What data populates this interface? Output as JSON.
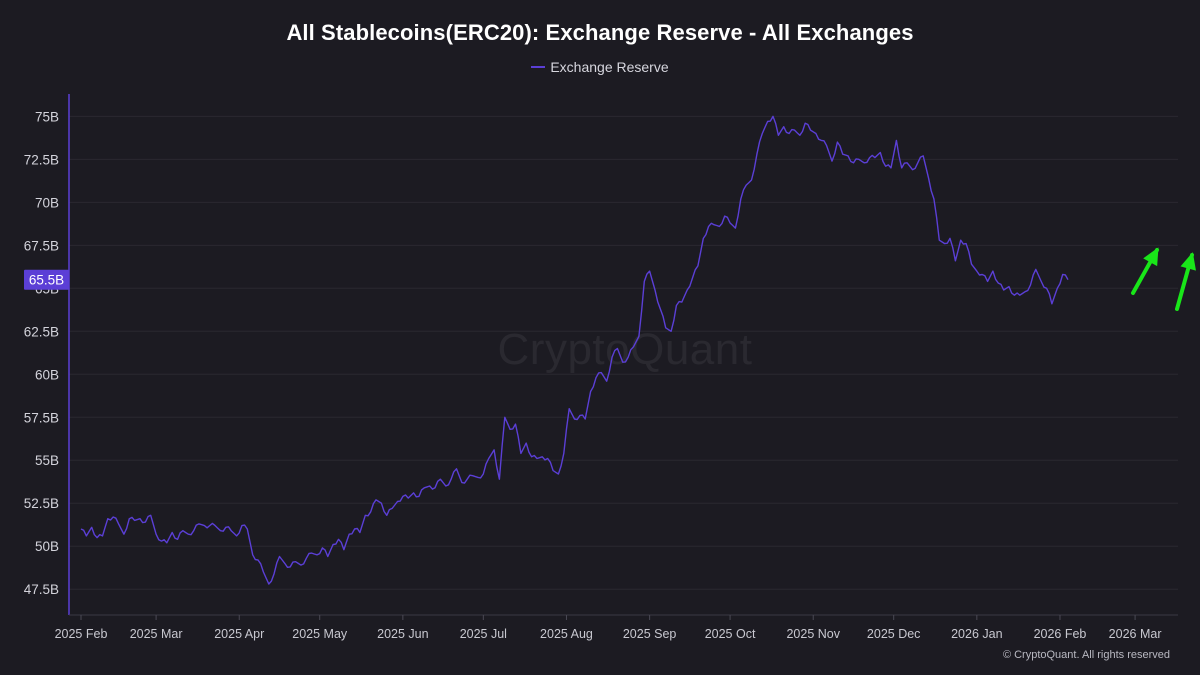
{
  "chart_data": {
    "type": "line",
    "title": "All Stablecoins(ERC20): Exchange Reserve - All Exchanges",
    "legend": [
      "Exchange Reserve"
    ],
    "legend_position": "top-center",
    "ylabel": "",
    "xlabel": "",
    "ylim": [
      46,
      76.3
    ],
    "y_ticks": [
      {
        "value": 47.5,
        "label": "47.5B"
      },
      {
        "value": 50,
        "label": "50B"
      },
      {
        "value": 52.5,
        "label": "52.5B"
      },
      {
        "value": 55,
        "label": "55B"
      },
      {
        "value": 57.5,
        "label": "57.5B"
      },
      {
        "value": 60,
        "label": "60B"
      },
      {
        "value": 62.5,
        "label": "62.5B"
      },
      {
        "value": 65,
        "label": "65B"
      },
      {
        "value": 67.5,
        "label": "67.5B"
      },
      {
        "value": 70,
        "label": "70B"
      },
      {
        "value": 72.5,
        "label": "72.5B"
      },
      {
        "value": 75,
        "label": "75B"
      }
    ],
    "xlim": [
      0,
      409
    ],
    "x_ticks": [
      {
        "day": 0,
        "label": "2025 Feb"
      },
      {
        "day": 28,
        "label": "2025 Mar"
      },
      {
        "day": 59,
        "label": "2025 Apr"
      },
      {
        "day": 89,
        "label": "2025 May"
      },
      {
        "day": 120,
        "label": "2025 Jun"
      },
      {
        "day": 150,
        "label": "2025 Jul"
      },
      {
        "day": 181,
        "label": "2025 Aug"
      },
      {
        "day": 212,
        "label": "2025 Sep"
      },
      {
        "day": 242,
        "label": "2025 Oct"
      },
      {
        "day": 273,
        "label": "2025 Nov"
      },
      {
        "day": 303,
        "label": "2025 Dec"
      },
      {
        "day": 334,
        "label": "2026 Jan"
      },
      {
        "day": 365,
        "label": "2026 Feb"
      },
      {
        "day": 393,
        "label": "2026 Mar"
      }
    ],
    "grid": true,
    "current_value_label": "65.5B",
    "current_value": 65.5,
    "series": [
      {
        "name": "Exchange Reserve",
        "color": "#5b3fd6",
        "x_unit": "days since 2025-01-25",
        "points": [
          [
            0,
            51.0
          ],
          [
            2,
            50.6
          ],
          [
            4,
            51.1
          ],
          [
            6,
            50.5
          ],
          [
            8,
            50.6
          ],
          [
            10,
            51.6
          ],
          [
            12,
            51.7
          ],
          [
            14,
            51.3
          ],
          [
            16,
            50.7
          ],
          [
            18,
            51.6
          ],
          [
            20,
            51.5
          ],
          [
            22,
            51.6
          ],
          [
            24,
            51.4
          ],
          [
            26,
            51.8
          ],
          [
            28,
            50.7
          ],
          [
            30,
            50.3
          ],
          [
            32,
            50.2
          ],
          [
            34,
            50.8
          ],
          [
            36,
            50.4
          ],
          [
            38,
            50.9
          ],
          [
            40,
            50.7
          ],
          [
            42,
            50.9
          ],
          [
            44,
            51.3
          ],
          [
            46,
            51.2
          ],
          [
            48,
            51.2
          ],
          [
            50,
            51.2
          ],
          [
            52,
            50.9
          ],
          [
            54,
            51.1
          ],
          [
            56,
            50.9
          ],
          [
            58,
            50.6
          ],
          [
            60,
            51.2
          ],
          [
            62,
            51.0
          ],
          [
            64,
            49.5
          ],
          [
            66,
            49.2
          ],
          [
            68,
            48.5
          ],
          [
            70,
            47.8
          ],
          [
            72,
            48.4
          ],
          [
            74,
            49.4
          ],
          [
            76,
            49.0
          ],
          [
            78,
            48.8
          ],
          [
            80,
            49.1
          ],
          [
            82,
            48.9
          ],
          [
            84,
            49.3
          ],
          [
            86,
            49.6
          ],
          [
            88,
            49.5
          ],
          [
            90,
            49.9
          ],
          [
            92,
            49.4
          ],
          [
            94,
            50.1
          ],
          [
            96,
            50.4
          ],
          [
            98,
            49.8
          ],
          [
            100,
            50.7
          ],
          [
            102,
            51.0
          ],
          [
            104,
            50.8
          ],
          [
            106,
            51.8
          ],
          [
            108,
            52.0
          ],
          [
            110,
            52.7
          ],
          [
            112,
            52.5
          ],
          [
            114,
            51.8
          ],
          [
            116,
            52.2
          ],
          [
            118,
            52.6
          ],
          [
            120,
            52.9
          ],
          [
            122,
            52.8
          ],
          [
            124,
            53.1
          ],
          [
            126,
            52.9
          ],
          [
            128,
            53.4
          ],
          [
            130,
            53.5
          ],
          [
            132,
            53.4
          ],
          [
            134,
            53.9
          ],
          [
            136,
            53.5
          ],
          [
            138,
            53.9
          ],
          [
            140,
            54.5
          ],
          [
            142,
            53.7
          ],
          [
            144,
            53.9
          ],
          [
            146,
            54.1
          ],
          [
            148,
            54.0
          ],
          [
            150,
            54.2
          ],
          [
            152,
            55.1
          ],
          [
            154,
            55.6
          ],
          [
            156,
            53.9
          ],
          [
            158,
            57.5
          ],
          [
            160,
            56.8
          ],
          [
            162,
            57.1
          ],
          [
            164,
            55.4
          ],
          [
            166,
            56.0
          ],
          [
            168,
            55.2
          ],
          [
            170,
            55.1
          ],
          [
            172,
            55.2
          ],
          [
            174,
            55.1
          ],
          [
            176,
            54.4
          ],
          [
            178,
            54.2
          ],
          [
            180,
            55.4
          ],
          [
            182,
            58.0
          ],
          [
            184,
            57.4
          ],
          [
            186,
            57.6
          ],
          [
            188,
            57.4
          ],
          [
            190,
            59.0
          ],
          [
            192,
            59.8
          ],
          [
            194,
            60.1
          ],
          [
            196,
            59.6
          ],
          [
            198,
            61.0
          ],
          [
            200,
            61.5
          ],
          [
            202,
            60.7
          ],
          [
            204,
            61.0
          ],
          [
            206,
            61.6
          ],
          [
            208,
            62.2
          ],
          [
            210,
            65.4
          ],
          [
            212,
            66.0
          ],
          [
            214,
            64.9
          ],
          [
            216,
            63.8
          ],
          [
            218,
            62.7
          ],
          [
            220,
            62.5
          ],
          [
            222,
            64.0
          ],
          [
            224,
            64.2
          ],
          [
            226,
            64.9
          ],
          [
            228,
            65.6
          ],
          [
            230,
            66.3
          ],
          [
            232,
            67.9
          ],
          [
            234,
            68.6
          ],
          [
            236,
            68.7
          ],
          [
            238,
            68.6
          ],
          [
            240,
            69.2
          ],
          [
            242,
            68.8
          ],
          [
            244,
            68.5
          ],
          [
            246,
            70.2
          ],
          [
            248,
            71.0
          ],
          [
            250,
            71.3
          ],
          [
            252,
            72.8
          ],
          [
            254,
            74.0
          ],
          [
            256,
            74.7
          ],
          [
            258,
            75.0
          ],
          [
            260,
            73.9
          ],
          [
            262,
            74.4
          ],
          [
            264,
            74.0
          ],
          [
            266,
            74.2
          ],
          [
            268,
            73.9
          ],
          [
            270,
            74.6
          ],
          [
            272,
            74.2
          ],
          [
            274,
            74.0
          ],
          [
            276,
            73.6
          ],
          [
            278,
            73.3
          ],
          [
            280,
            72.4
          ],
          [
            282,
            73.5
          ],
          [
            284,
            72.8
          ],
          [
            286,
            72.7
          ],
          [
            288,
            72.3
          ],
          [
            290,
            72.5
          ],
          [
            292,
            72.3
          ],
          [
            294,
            72.6
          ],
          [
            296,
            72.6
          ],
          [
            298,
            72.9
          ],
          [
            300,
            72.1
          ],
          [
            302,
            72.0
          ],
          [
            304,
            73.6
          ],
          [
            306,
            72.0
          ],
          [
            308,
            72.3
          ],
          [
            310,
            71.9
          ],
          [
            312,
            72.3
          ],
          [
            314,
            72.7
          ],
          [
            316,
            71.4
          ],
          [
            318,
            70.2
          ],
          [
            320,
            67.8
          ],
          [
            322,
            67.6
          ],
          [
            324,
            67.9
          ],
          [
            326,
            66.6
          ],
          [
            328,
            67.8
          ],
          [
            330,
            67.6
          ],
          [
            332,
            66.4
          ],
          [
            334,
            66.0
          ],
          [
            336,
            65.8
          ],
          [
            338,
            65.4
          ],
          [
            340,
            66.0
          ],
          [
            342,
            65.3
          ],
          [
            344,
            64.9
          ],
          [
            346,
            65.1
          ],
          [
            348,
            64.6
          ],
          [
            350,
            64.6
          ],
          [
            352,
            64.8
          ],
          [
            354,
            65.2
          ],
          [
            356,
            66.1
          ],
          [
            358,
            65.4
          ],
          [
            360,
            65.0
          ],
          [
            362,
            64.1
          ],
          [
            364,
            65.0
          ],
          [
            366,
            65.8
          ],
          [
            368,
            65.5
          ]
        ]
      }
    ]
  },
  "watermark": "CryptoQuant",
  "copyright": "© CryptoQuant. All rights reserved",
  "annotations": [
    {
      "type": "arrow",
      "color": "#19e619",
      "direction": "up-right",
      "near": "2026 Mar"
    },
    {
      "type": "arrow",
      "color": "#19e619",
      "direction": "up-right",
      "near": "right-edge"
    }
  ]
}
